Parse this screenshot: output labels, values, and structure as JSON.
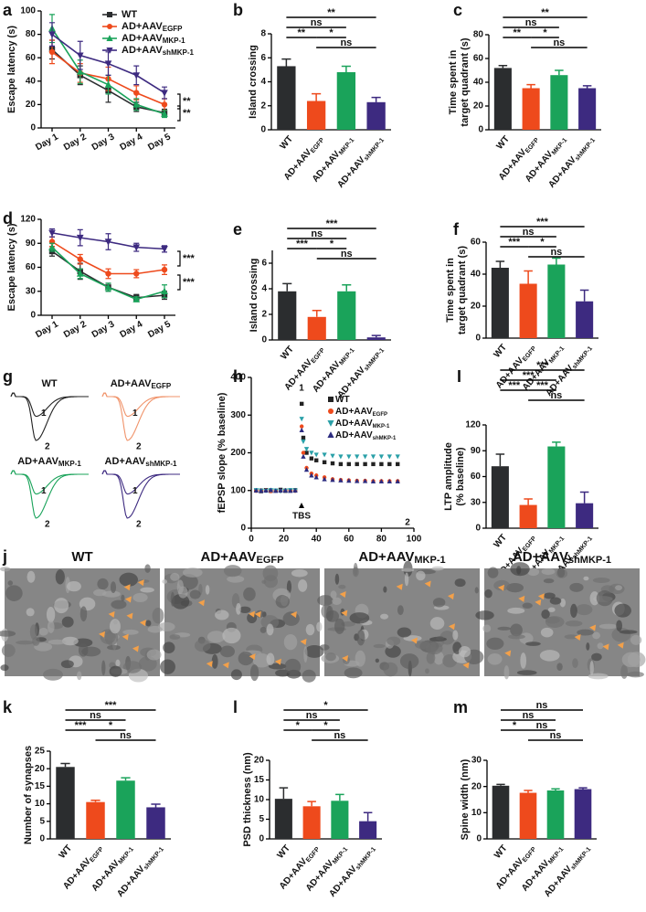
{
  "chart_data": [
    {
      "panel": "a",
      "type": "line",
      "ylabel": "Escape latency (s)",
      "categories": [
        "Day 1",
        "Day 2",
        "Day 3",
        "Day 4",
        "Day 5"
      ],
      "ylim": [
        0,
        100
      ],
      "yticks": [
        0,
        20,
        40,
        60,
        80,
        100
      ],
      "series": [
        {
          "name": "WT",
          "name_sub": null,
          "color": "#2b2d2f",
          "marker": "square",
          "values": [
            67,
            45,
            32,
            18,
            13
          ],
          "errors": [
            8,
            8,
            10,
            4,
            3
          ]
        },
        {
          "name": "AD+AAV",
          "name_sub": "EGFP",
          "color": "#ee4a1c",
          "marker": "circle",
          "values": [
            65,
            47,
            42,
            30,
            20
          ],
          "errors": [
            10,
            8,
            10,
            6,
            5
          ]
        },
        {
          "name": "AD+AAV",
          "name_sub": "MKP-1",
          "color": "#1aa35a",
          "marker": "triangle-up",
          "values": [
            85,
            48,
            37,
            20,
            12
          ],
          "errors": [
            12,
            10,
            8,
            5,
            3
          ]
        },
        {
          "name": "AD+AAV",
          "name_sub": "shMKP-1",
          "color": "#3d2a80",
          "marker": "triangle-down",
          "values": [
            80,
            62,
            55,
            45,
            30
          ],
          "errors": [
            10,
            12,
            10,
            8,
            5
          ]
        }
      ],
      "annotations": [
        "**",
        "**"
      ]
    },
    {
      "panel": "b",
      "type": "bar",
      "ylabel": "Island crossing",
      "categories": [
        "WT",
        "AD+AAV",
        "AD+AAV",
        "AD+AAV"
      ],
      "category_subs": [
        null,
        "EGFP",
        "MKP-1",
        "shMKP-1"
      ],
      "values": [
        5.3,
        2.4,
        4.8,
        2.3
      ],
      "errors": [
        0.6,
        0.6,
        0.5,
        0.4
      ],
      "colors": [
        "#2b2d2f",
        "#ee4a1c",
        "#1aa35a",
        "#3d2a80"
      ],
      "ylim": [
        0,
        8
      ],
      "yticks": [
        0,
        2,
        4,
        6,
        8
      ],
      "significance": [
        {
          "groups": [
            0,
            3
          ],
          "label": "**"
        },
        {
          "groups": [
            0,
            2
          ],
          "label": "ns"
        },
        {
          "groups": [
            0,
            1
          ],
          "label": "**"
        },
        {
          "groups": [
            1,
            2
          ],
          "label": "*"
        },
        {
          "groups": [
            1,
            3
          ],
          "label": "ns"
        }
      ]
    },
    {
      "panel": "c",
      "type": "bar",
      "ylabel": [
        "Time spent in",
        "target quadrant (s)"
      ],
      "categories": [
        "WT",
        "AD+AAV",
        "AD+AAV",
        "AD+AAV"
      ],
      "category_subs": [
        null,
        "EGFP",
        "MKP-1",
        "shMKP-1"
      ],
      "values": [
        52,
        35,
        46,
        35
      ],
      "errors": [
        2,
        3,
        4,
        2
      ],
      "colors": [
        "#2b2d2f",
        "#ee4a1c",
        "#1aa35a",
        "#3d2a80"
      ],
      "ylim": [
        0,
        80
      ],
      "yticks": [
        0,
        20,
        40,
        60,
        80
      ],
      "significance": [
        {
          "groups": [
            0,
            3
          ],
          "label": "**"
        },
        {
          "groups": [
            0,
            2
          ],
          "label": "ns"
        },
        {
          "groups": [
            0,
            1
          ],
          "label": "**"
        },
        {
          "groups": [
            1,
            2
          ],
          "label": "*"
        },
        {
          "groups": [
            1,
            3
          ],
          "label": "ns"
        }
      ]
    },
    {
      "panel": "d",
      "type": "line",
      "ylabel": "Escape latency (s)",
      "categories": [
        "Day 1",
        "Day 2",
        "Day 3",
        "Day 4",
        "Day 5"
      ],
      "ylim": [
        0,
        120
      ],
      "yticks": [
        0,
        30,
        60,
        90,
        120
      ],
      "series": [
        {
          "color": "#2b2d2f",
          "marker": "square",
          "values": [
            80,
            55,
            35,
            22,
            25
          ],
          "errors": [
            6,
            10,
            5,
            4,
            5
          ]
        },
        {
          "color": "#ee4a1c",
          "marker": "circle",
          "values": [
            92,
            70,
            52,
            52,
            57
          ],
          "errors": [
            6,
            6,
            6,
            5,
            6
          ]
        },
        {
          "color": "#1aa35a",
          "marker": "triangle-up",
          "values": [
            85,
            52,
            35,
            20,
            30
          ],
          "errors": [
            5,
            6,
            5,
            3,
            8
          ]
        },
        {
          "color": "#3d2a80",
          "marker": "triangle-down",
          "values": [
            103,
            97,
            92,
            85,
            83
          ],
          "errors": [
            5,
            10,
            10,
            5,
            4
          ]
        }
      ],
      "annotations": [
        "***",
        "***"
      ]
    },
    {
      "panel": "e",
      "type": "bar",
      "ylabel": "Island crossing",
      "categories": [
        "WT",
        "AD+AAV",
        "AD+AAV",
        "AD+AAV"
      ],
      "category_subs": [
        null,
        "EGFP",
        "MKP-1",
        "shMKP-1"
      ],
      "values": [
        3.8,
        1.8,
        3.8,
        0.2
      ],
      "errors": [
        0.6,
        0.5,
        0.5,
        0.15
      ],
      "colors": [
        "#2b2d2f",
        "#ee4a1c",
        "#1aa35a",
        "#3d2a80"
      ],
      "ylim": [
        0,
        7
      ],
      "yticks": [
        0,
        2,
        4,
        6
      ],
      "significance": [
        {
          "groups": [
            0,
            3
          ],
          "label": "***"
        },
        {
          "groups": [
            0,
            2
          ],
          "label": "ns"
        },
        {
          "groups": [
            0,
            1
          ],
          "label": "***"
        },
        {
          "groups": [
            1,
            2
          ],
          "label": "*"
        },
        {
          "groups": [
            1,
            3
          ],
          "label": "ns"
        }
      ]
    },
    {
      "panel": "f",
      "type": "bar",
      "ylabel": [
        "Time spent in",
        "target quadrant (s)"
      ],
      "categories": [
        "WT",
        "AD+AAV",
        "AD+AAV",
        "AD+AAV"
      ],
      "category_subs": [
        null,
        "EGFP",
        "MKP-1",
        "shMKP-1"
      ],
      "values": [
        44,
        34,
        46,
        23
      ],
      "errors": [
        4,
        8,
        4,
        7
      ],
      "colors": [
        "#2b2d2f",
        "#ee4a1c",
        "#1aa35a",
        "#3d2a80"
      ],
      "ylim": [
        0,
        60
      ],
      "yticks": [
        0,
        20,
        40,
        60
      ],
      "significance": [
        {
          "groups": [
            0,
            3
          ],
          "label": "***"
        },
        {
          "groups": [
            0,
            2
          ],
          "label": "ns"
        },
        {
          "groups": [
            0,
            1
          ],
          "label": "***"
        },
        {
          "groups": [
            1,
            2
          ],
          "label": "*"
        },
        {
          "groups": [
            1,
            3
          ],
          "label": "ns"
        }
      ]
    },
    {
      "panel": "g",
      "type": "traces",
      "labels": [
        {
          "text": "WT",
          "sub": null
        },
        {
          "text": "AD+AAV",
          "sub": "EGFP"
        },
        {
          "text": "AD+AAV",
          "sub": "MKP-1"
        },
        {
          "text": "AD+AAV",
          "sub": "shMKP-1"
        }
      ],
      "colors": [
        "#222222",
        "#f0936a",
        "#1aa35a",
        "#3d2a80"
      ],
      "marks": [
        "1",
        "2"
      ]
    },
    {
      "panel": "h",
      "type": "scatter",
      "ylabel": "fEPSP slope (% baseline)",
      "x": [
        3,
        6,
        9,
        12,
        15,
        18,
        21,
        24,
        27,
        31,
        32,
        34,
        37,
        40,
        45,
        50,
        55,
        60,
        65,
        70,
        75,
        80,
        85,
        90
      ],
      "xlim": [
        0,
        100
      ],
      "xticks": [
        0,
        20,
        40,
        60,
        80,
        100
      ],
      "ylim": [
        0,
        400
      ],
      "yticks": [
        0,
        100,
        200,
        300,
        400
      ],
      "series": [
        {
          "name": "WT",
          "name_sub": null,
          "color": "#222222",
          "marker": "square",
          "values": [
            100,
            98,
            101,
            99,
            100,
            102,
            99,
            100,
            101,
            330,
            240,
            200,
            185,
            180,
            175,
            172,
            170,
            170,
            170,
            170,
            170,
            170,
            170,
            170
          ]
        },
        {
          "name": "AD+AAV",
          "name_sub": "EGFP",
          "color": "#ee4a1c",
          "marker": "circle",
          "values": [
            99,
            101,
            100,
            98,
            100,
            99,
            101,
            100,
            99,
            270,
            200,
            160,
            145,
            140,
            135,
            130,
            128,
            127,
            126,
            126,
            125,
            125,
            125,
            125
          ]
        },
        {
          "name": "AD+AAV",
          "name_sub": "MKP-1",
          "color": "#2aa0a8",
          "marker": "triangle-down",
          "values": [
            101,
            100,
            99,
            101,
            100,
            98,
            100,
            101,
            100,
            290,
            230,
            210,
            200,
            195,
            195,
            192,
            190,
            190,
            190,
            190,
            190,
            190,
            190,
            190
          ]
        },
        {
          "name": "AD+AAV",
          "name_sub": "shMKP-1",
          "color": "#2c2c80",
          "marker": "triangle-up",
          "values": [
            100,
            99,
            100,
            101,
            99,
            100,
            100,
            99,
            100,
            260,
            190,
            155,
            140,
            135,
            130,
            128,
            127,
            126,
            125,
            125,
            124,
            124,
            124,
            124
          ]
        }
      ],
      "annotations": [
        "TBS",
        "1",
        "2"
      ]
    },
    {
      "panel": "I",
      "type": "bar",
      "ylabel": [
        "LTP amplitude",
        "(% baseline)"
      ],
      "categories": [
        "WT",
        "AD+AAV",
        "AD+AAV",
        "AD+AAV"
      ],
      "category_subs": [
        null,
        "EGFP",
        "MKP-1",
        "shMKP-1"
      ],
      "values": [
        72,
        27,
        95,
        29
      ],
      "errors": [
        14,
        7,
        5,
        13
      ],
      "colors": [
        "#2b2d2f",
        "#ee4a1c",
        "#1aa35a",
        "#3d2a80"
      ],
      "ylim": [
        0,
        120
      ],
      "yticks": [
        0,
        30,
        60,
        90,
        120
      ],
      "significance": [
        {
          "groups": [
            0,
            3
          ],
          "label": "***"
        },
        {
          "groups": [
            0,
            2
          ],
          "label": "***"
        },
        {
          "groups": [
            0,
            1
          ],
          "label": "***"
        },
        {
          "groups": [
            1,
            2
          ],
          "label": "***"
        },
        {
          "groups": [
            1,
            3
          ],
          "label": "ns"
        }
      ]
    },
    {
      "panel": "j",
      "type": "images",
      "labels": [
        {
          "text": "WT",
          "sub": null
        },
        {
          "text": "AD+AAV",
          "sub": "EGFP"
        },
        {
          "text": "AD+AAV",
          "sub": "MKP-1"
        },
        {
          "text": "AD+AAV",
          "sub": "shMKP-1"
        }
      ]
    },
    {
      "panel": "k",
      "type": "bar",
      "ylabel": "Number of synapses",
      "categories": [
        "WT",
        "AD+AAV",
        "AD+AAV",
        "AD+AAV"
      ],
      "category_subs": [
        null,
        "EGFP",
        "MKP-1",
        "shMKP-1"
      ],
      "values": [
        20.5,
        10.5,
        16.6,
        9
      ],
      "errors": [
        1,
        0.5,
        0.8,
        0.9
      ],
      "colors": [
        "#2b2d2f",
        "#ee4a1c",
        "#1aa35a",
        "#3d2a80"
      ],
      "ylim": [
        0,
        25
      ],
      "yticks": [
        0,
        5,
        10,
        15,
        20,
        25
      ],
      "significance": [
        {
          "groups": [
            0,
            3
          ],
          "label": "***"
        },
        {
          "groups": [
            0,
            2
          ],
          "label": "ns"
        },
        {
          "groups": [
            0,
            1
          ],
          "label": "***"
        },
        {
          "groups": [
            1,
            2
          ],
          "label": "*"
        },
        {
          "groups": [
            1,
            3
          ],
          "label": "ns"
        }
      ]
    },
    {
      "panel": "l",
      "type": "bar",
      "ylabel": "PSD thickness (nm)",
      "categories": [
        "WT",
        "AD+AAV",
        "AD+AAV",
        "AD+AAV"
      ],
      "category_subs": [
        null,
        "EGFP",
        "MKP-1",
        "shMKP-1"
      ],
      "values": [
        10.2,
        8.3,
        9.7,
        4.5
      ],
      "errors": [
        2.8,
        1.2,
        1.6,
        2.2
      ],
      "colors": [
        "#2b2d2f",
        "#ee4a1c",
        "#1aa35a",
        "#3d2a80"
      ],
      "ylim": [
        0,
        20
      ],
      "yticks": [
        0,
        5,
        10,
        15,
        20
      ],
      "significance": [
        {
          "groups": [
            0,
            3
          ],
          "label": "*"
        },
        {
          "groups": [
            0,
            2
          ],
          "label": "ns"
        },
        {
          "groups": [
            0,
            1
          ],
          "label": "*"
        },
        {
          "groups": [
            1,
            2
          ],
          "label": "*"
        },
        {
          "groups": [
            1,
            3
          ],
          "label": "ns"
        }
      ]
    },
    {
      "panel": "m",
      "type": "bar",
      "ylabel": "Spine width (nm)",
      "categories": [
        "WT",
        "AD+AAV",
        "AD+AAV",
        "AD+AAV"
      ],
      "category_subs": [
        null,
        "EGFP",
        "MKP-1",
        "shMKP-1"
      ],
      "values": [
        20.3,
        17.6,
        18.5,
        19.0
      ],
      "errors": [
        0.5,
        0.9,
        0.6,
        0.5
      ],
      "colors": [
        "#2b2d2f",
        "#ee4a1c",
        "#1aa35a",
        "#3d2a80"
      ],
      "ylim": [
        0,
        30
      ],
      "yticks": [
        0,
        10,
        20,
        30
      ],
      "significance": [
        {
          "groups": [
            0,
            3
          ],
          "label": "ns"
        },
        {
          "groups": [
            0,
            2
          ],
          "label": "ns"
        },
        {
          "groups": [
            0,
            1
          ],
          "label": "*"
        },
        {
          "groups": [
            1,
            2
          ],
          "label": "ns"
        },
        {
          "groups": [
            1,
            3
          ],
          "label": "ns"
        }
      ]
    }
  ]
}
